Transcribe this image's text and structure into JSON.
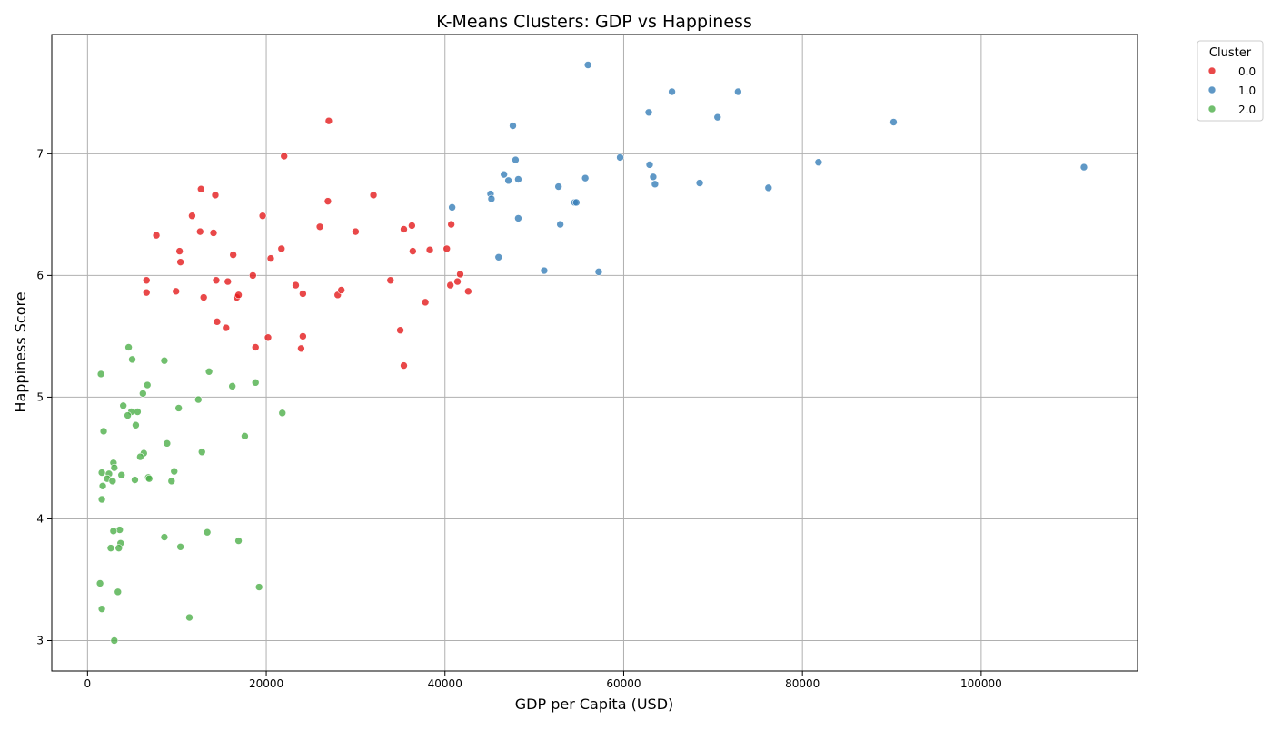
{
  "chart_data": {
    "type": "scatter",
    "title": "K-Means Clusters: GDP vs Happiness",
    "xlabel": "GDP per Capita (USD)",
    "ylabel": "Happiness Score",
    "xlim": [
      -4000,
      117500
    ],
    "ylim": [
      2.75,
      7.98
    ],
    "x_ticks": [
      0,
      20000,
      40000,
      60000,
      80000,
      100000
    ],
    "x_tick_labels": [
      "0",
      "20000",
      "40000",
      "60000",
      "80000",
      "100000"
    ],
    "y_ticks": [
      3,
      4,
      5,
      6,
      7
    ],
    "y_tick_labels": [
      "3",
      "4",
      "5",
      "6",
      "7"
    ],
    "grid": true,
    "legend": {
      "title": "Cluster",
      "placement": "outside-top-right",
      "entries": [
        "0.0",
        "1.0",
        "2.0"
      ]
    },
    "series": [
      {
        "name": "0.0",
        "color": "#e41a1c",
        "points": [
          [
            27000,
            7.27
          ],
          [
            22000,
            6.98
          ],
          [
            12700,
            6.71
          ],
          [
            14300,
            6.66
          ],
          [
            32000,
            6.66
          ],
          [
            26900,
            6.61
          ],
          [
            11700,
            6.49
          ],
          [
            19600,
            6.49
          ],
          [
            26000,
            6.4
          ],
          [
            36300,
            6.41
          ],
          [
            40700,
            6.42
          ],
          [
            7700,
            6.33
          ],
          [
            12600,
            6.36
          ],
          [
            14100,
            6.35
          ],
          [
            30000,
            6.36
          ],
          [
            35400,
            6.38
          ],
          [
            10300,
            6.2
          ],
          [
            16300,
            6.17
          ],
          [
            21700,
            6.22
          ],
          [
            36400,
            6.2
          ],
          [
            38300,
            6.21
          ],
          [
            40200,
            6.22
          ],
          [
            10400,
            6.11
          ],
          [
            20500,
            6.14
          ],
          [
            6600,
            5.96
          ],
          [
            14400,
            5.96
          ],
          [
            15700,
            5.95
          ],
          [
            18500,
            6.0
          ],
          [
            33900,
            5.96
          ],
          [
            41700,
            6.01
          ],
          [
            41400,
            5.95
          ],
          [
            40600,
            5.92
          ],
          [
            6600,
            5.86
          ],
          [
            9900,
            5.87
          ],
          [
            13000,
            5.82
          ],
          [
            16700,
            5.82
          ],
          [
            16900,
            5.84
          ],
          [
            23300,
            5.92
          ],
          [
            24100,
            5.85
          ],
          [
            28000,
            5.84
          ],
          [
            28400,
            5.88
          ],
          [
            37800,
            5.78
          ],
          [
            42600,
            5.87
          ],
          [
            14500,
            5.62
          ],
          [
            15500,
            5.57
          ],
          [
            20200,
            5.49
          ],
          [
            24100,
            5.5
          ],
          [
            35000,
            5.55
          ],
          [
            18800,
            5.41
          ],
          [
            23900,
            5.4
          ],
          [
            35400,
            5.26
          ]
        ]
      },
      {
        "name": "1.0",
        "color": "#377eb8",
        "points": [
          [
            56000,
            7.73
          ],
          [
            65400,
            7.51
          ],
          [
            72800,
            7.51
          ],
          [
            62800,
            7.34
          ],
          [
            70500,
            7.3
          ],
          [
            90200,
            7.26
          ],
          [
            47600,
            7.23
          ],
          [
            59600,
            6.97
          ],
          [
            47900,
            6.95
          ],
          [
            81800,
            6.93
          ],
          [
            62900,
            6.91
          ],
          [
            111500,
            6.89
          ],
          [
            46600,
            6.83
          ],
          [
            63300,
            6.81
          ],
          [
            55700,
            6.8
          ],
          [
            48200,
            6.79
          ],
          [
            47100,
            6.78
          ],
          [
            63500,
            6.75
          ],
          [
            68500,
            6.76
          ],
          [
            76200,
            6.72
          ],
          [
            52700,
            6.73
          ],
          [
            45100,
            6.67
          ],
          [
            45200,
            6.63
          ],
          [
            54500,
            6.6
          ],
          [
            54700,
            6.6
          ],
          [
            40800,
            6.56
          ],
          [
            48200,
            6.47
          ],
          [
            52900,
            6.42
          ],
          [
            46000,
            6.15
          ],
          [
            51100,
            6.04
          ],
          [
            57200,
            6.03
          ]
        ]
      },
      {
        "name": "2.0",
        "color": "#4daf4a",
        "points": [
          [
            4600,
            5.41
          ],
          [
            5000,
            5.31
          ],
          [
            8600,
            5.3
          ],
          [
            13600,
            5.21
          ],
          [
            1500,
            5.19
          ],
          [
            6700,
            5.1
          ],
          [
            16200,
            5.09
          ],
          [
            18800,
            5.12
          ],
          [
            6200,
            5.03
          ],
          [
            12400,
            4.98
          ],
          [
            4000,
            4.93
          ],
          [
            10200,
            4.91
          ],
          [
            4900,
            4.88
          ],
          [
            5600,
            4.88
          ],
          [
            4500,
            4.85
          ],
          [
            21800,
            4.87
          ],
          [
            5400,
            4.77
          ],
          [
            1800,
            4.72
          ],
          [
            17600,
            4.68
          ],
          [
            8900,
            4.62
          ],
          [
            6300,
            4.54
          ],
          [
            12800,
            4.55
          ],
          [
            5900,
            4.51
          ],
          [
            2900,
            4.46
          ],
          [
            3000,
            4.42
          ],
          [
            9700,
            4.39
          ],
          [
            1600,
            4.38
          ],
          [
            2400,
            4.37
          ],
          [
            3800,
            4.36
          ],
          [
            6800,
            4.34
          ],
          [
            6900,
            4.33
          ],
          [
            2200,
            4.33
          ],
          [
            5300,
            4.32
          ],
          [
            2800,
            4.31
          ],
          [
            9400,
            4.31
          ],
          [
            1700,
            4.27
          ],
          [
            1600,
            4.16
          ],
          [
            3600,
            3.91
          ],
          [
            2900,
            3.9
          ],
          [
            13400,
            3.89
          ],
          [
            8600,
            3.85
          ],
          [
            16900,
            3.82
          ],
          [
            3700,
            3.8
          ],
          [
            10400,
            3.77
          ],
          [
            2600,
            3.76
          ],
          [
            3500,
            3.76
          ],
          [
            1400,
            3.47
          ],
          [
            19200,
            3.44
          ],
          [
            3400,
            3.4
          ],
          [
            1600,
            3.26
          ],
          [
            11400,
            3.19
          ],
          [
            3000,
            3.0
          ]
        ]
      }
    ]
  }
}
